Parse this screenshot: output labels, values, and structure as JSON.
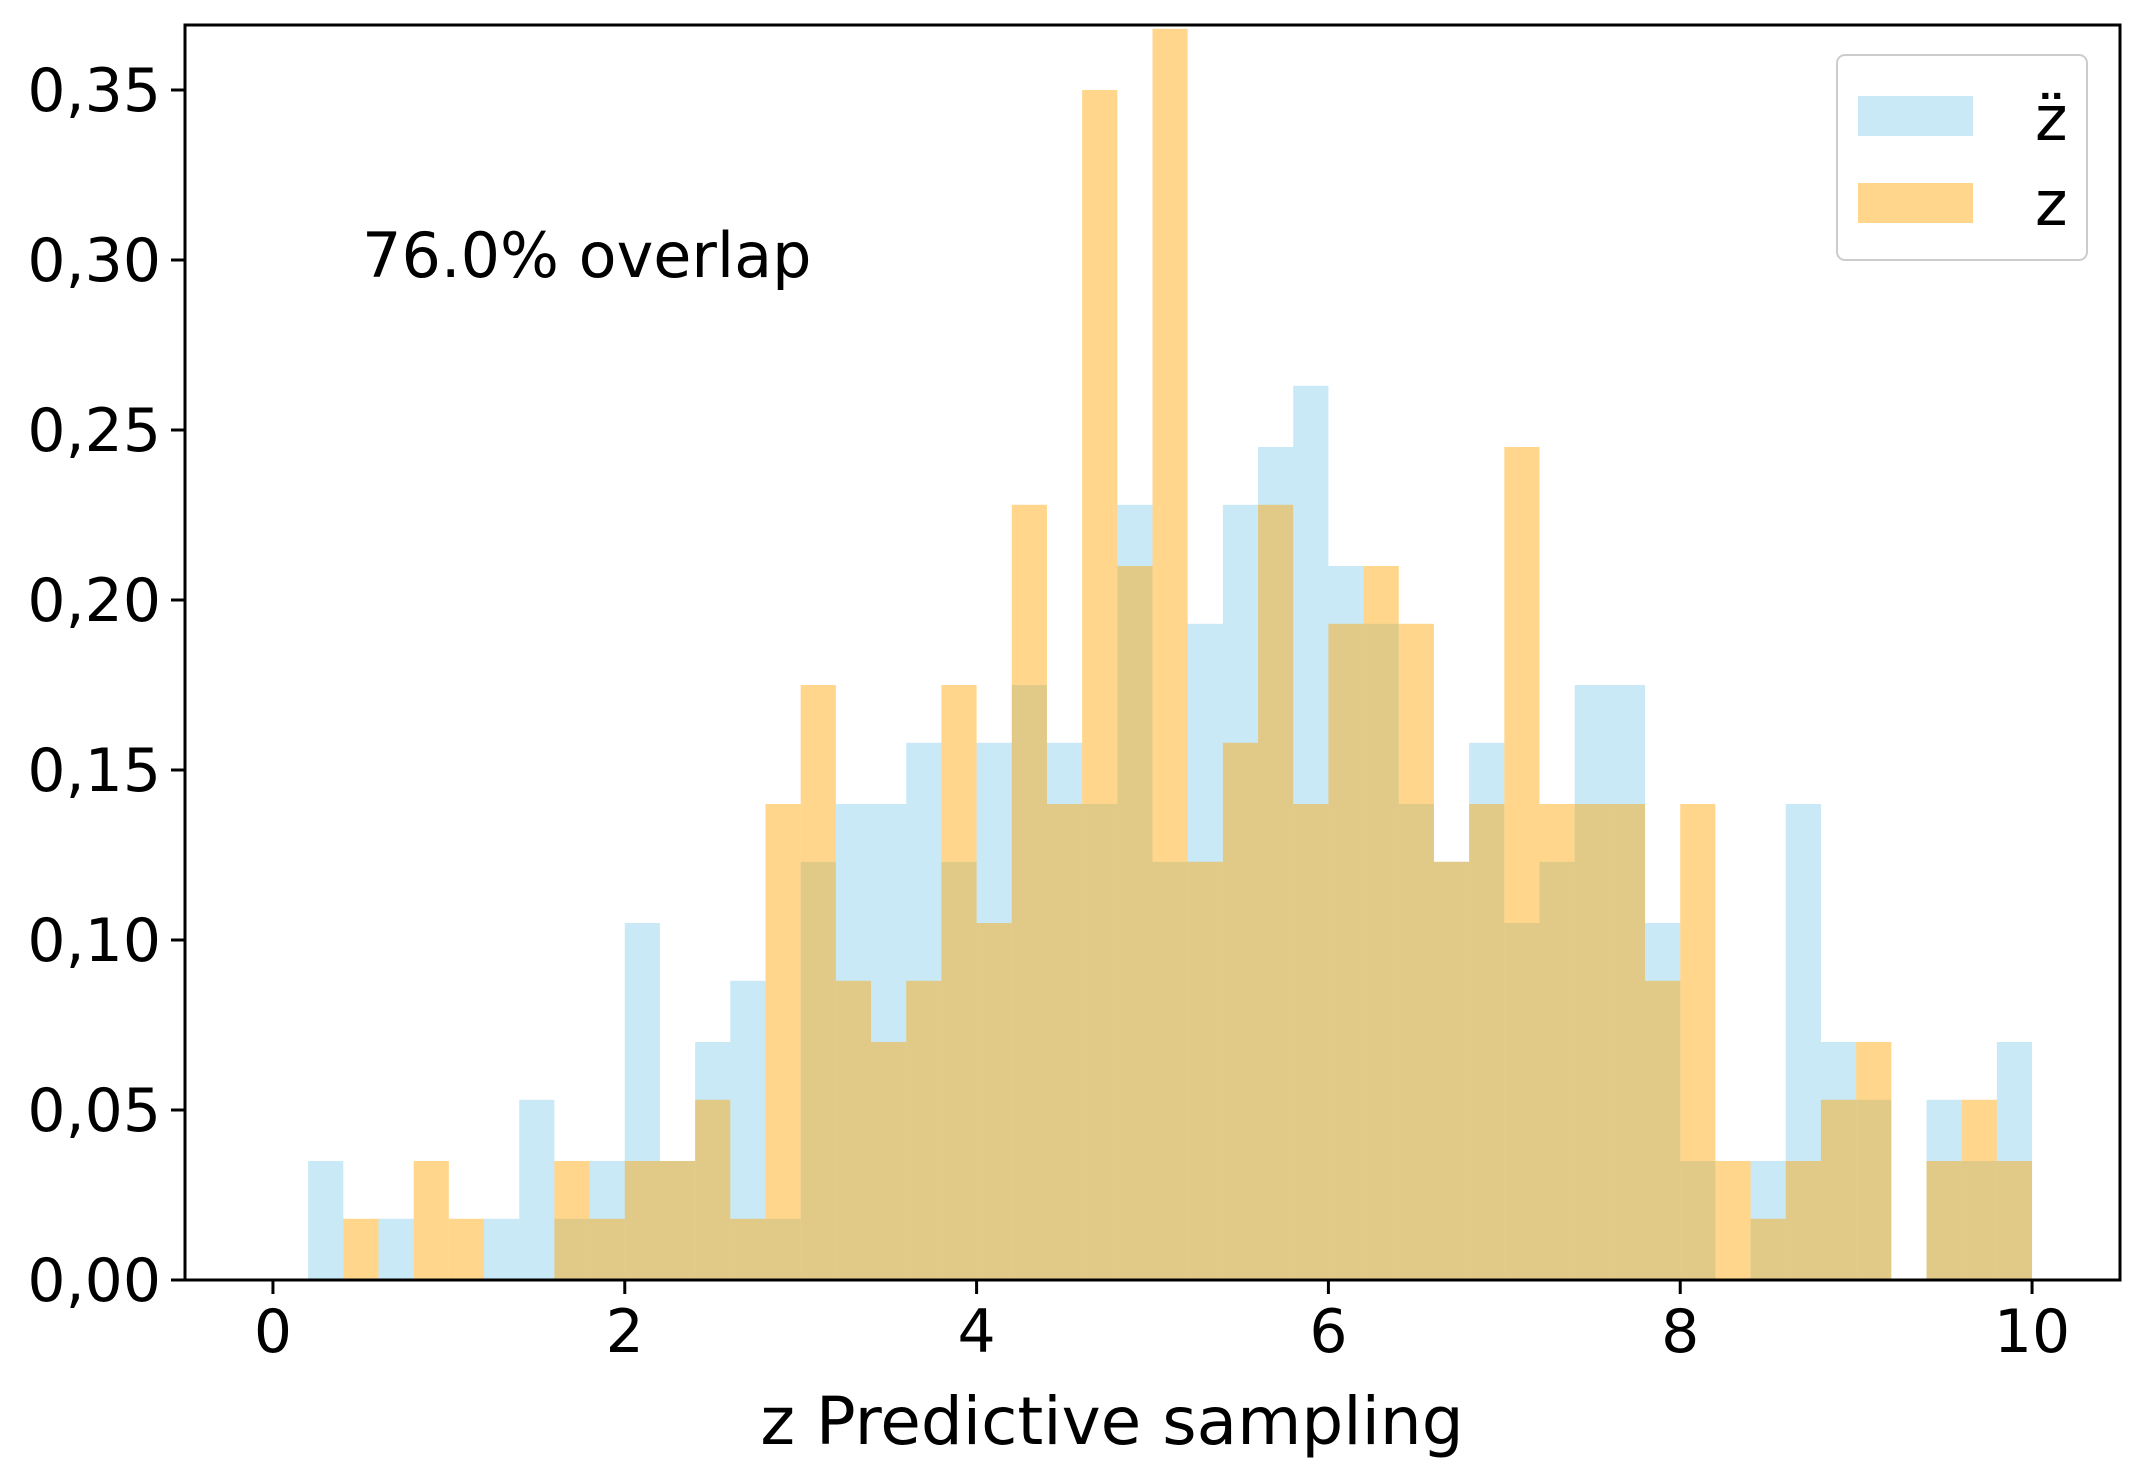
{
  "chart_data": {
    "type": "histogram",
    "xlabel": "z Predictive sampling",
    "ylabel": "",
    "xlim": [
      -0.5,
      10.5
    ],
    "ylim": [
      0,
      0.35
    ],
    "xticks": [
      0,
      2,
      4,
      6,
      8,
      10
    ],
    "xtick_labels": [
      "0",
      "2",
      "4",
      "6",
      "8",
      "10"
    ],
    "yticks": [
      0.0,
      0.05,
      0.1,
      0.15,
      0.2,
      0.25,
      0.3,
      0.35
    ],
    "ytick_labels": [
      "0,00",
      "0,05",
      "0,10",
      "0,15",
      "0,20",
      "0,25",
      "0,30",
      "0,35"
    ],
    "bin_start": 0,
    "bin_width": 0.2,
    "annotation": "76.0% overlap",
    "legend_position": "top-right",
    "series": [
      {
        "name": "z̈",
        "color": "#87ceeb",
        "opacity": 0.45,
        "values": [
          0,
          0.035,
          0,
          0.018,
          0,
          0,
          0.018,
          0.053,
          0.018,
          0.035,
          0.105,
          0.035,
          0.07,
          0.088,
          0.018,
          0.123,
          0.14,
          0.14,
          0.158,
          0.123,
          0.158,
          0.175,
          0.158,
          0.14,
          0.228,
          0.123,
          0.193,
          0.228,
          0.245,
          0.263,
          0.21,
          0.193,
          0.14,
          0.123,
          0.158,
          0.105,
          0.123,
          0.175,
          0.175,
          0.105,
          0.035,
          0,
          0.035,
          0.14,
          0.07,
          0.053,
          0,
          0.053,
          0.035,
          0.07
        ]
      },
      {
        "name": "z",
        "color": "#ffa500",
        "opacity": 0.45,
        "values": [
          0,
          0,
          0.018,
          0,
          0.035,
          0.018,
          0,
          0,
          0.035,
          0.018,
          0.035,
          0.035,
          0.053,
          0.018,
          0.14,
          0.175,
          0.088,
          0.07,
          0.088,
          0.175,
          0.105,
          0.228,
          0.14,
          0.35,
          0.21,
          0.368,
          0.123,
          0.158,
          0.228,
          0.14,
          0.193,
          0.21,
          0.193,
          0.123,
          0.14,
          0.245,
          0.14,
          0.14,
          0.14,
          0.088,
          0.14,
          0.035,
          0.018,
          0.035,
          0.053,
          0.07,
          0,
          0.035,
          0.053,
          0.035
        ]
      }
    ]
  }
}
